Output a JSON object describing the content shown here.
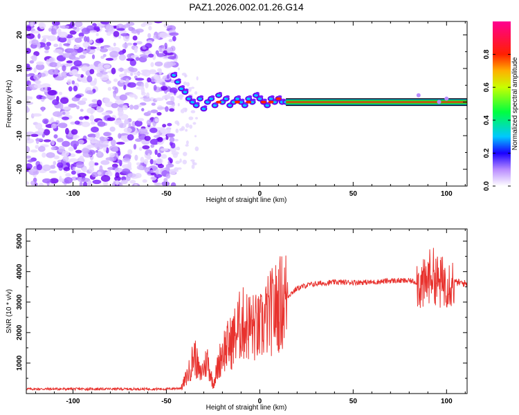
{
  "chart_data": [
    {
      "type": "heatmap",
      "title": "PAZ1.2026.002.01.26.G14",
      "xlabel": "Height of straight line (km)",
      "ylabel": "Frequency (Hz)",
      "xlim": [
        -125,
        111
      ],
      "ylim": [
        -25,
        24
      ],
      "xticks": [
        "-100",
        "-50",
        "0",
        "50",
        "100"
      ],
      "yticks": [
        "-20",
        "-10",
        "0",
        "10",
        "20"
      ],
      "x_tick_values": [
        -100,
        -50,
        0,
        50,
        100
      ],
      "y_tick_values": [
        -20,
        -10,
        0,
        10,
        20
      ],
      "colorbar": {
        "label": "Normalized spectral amplitude",
        "range": [
          0,
          1
        ],
        "ticks": [
          "0.0",
          "0.2",
          "0.4",
          "0.6",
          "0.8"
        ],
        "tick_values": [
          0.0,
          0.2,
          0.4,
          0.6,
          0.8
        ]
      },
      "description_points": {
        "noise_region_x": [
          -125,
          -45
        ],
        "transition_x": [
          -45,
          15
        ],
        "steady_carrier_x": [
          15,
          111
        ],
        "carrier_frequency": 0
      }
    },
    {
      "type": "line",
      "xlabel": "Height of straight line (km)",
      "ylabel": "SNR (10 * v/v)",
      "xlim": [
        -125,
        111
      ],
      "ylim": [
        0,
        5400
      ],
      "xticks": [
        "-100",
        "-50",
        "0",
        "50",
        "100"
      ],
      "yticks": [
        "1000",
        "2000",
        "3000",
        "4000",
        "5000"
      ],
      "x_tick_values": [
        -100,
        -50,
        0,
        50,
        100
      ],
      "y_tick_values": [
        1000,
        2000,
        3000,
        4000,
        5000
      ],
      "series": [
        {
          "name": "SNR",
          "color": "#e8322e",
          "x": [
            -125,
            -100,
            -75,
            -50,
            -42,
            -38,
            -35,
            -32,
            -28,
            -25,
            -20,
            -15,
            -10,
            -5,
            0,
            5,
            10,
            15,
            20,
            25,
            30,
            40,
            50,
            60,
            70,
            80,
            85,
            88,
            92,
            96,
            100,
            105,
            111
          ],
          "y": [
            150,
            150,
            150,
            150,
            180,
            700,
            1300,
            600,
            1100,
            300,
            1400,
            1700,
            2300,
            2200,
            2100,
            2600,
            2900,
            3200,
            3450,
            3550,
            3600,
            3650,
            3650,
            3650,
            3700,
            3700,
            3650,
            3500,
            4000,
            3600,
            3700,
            3650,
            3600
          ]
        }
      ]
    }
  ]
}
